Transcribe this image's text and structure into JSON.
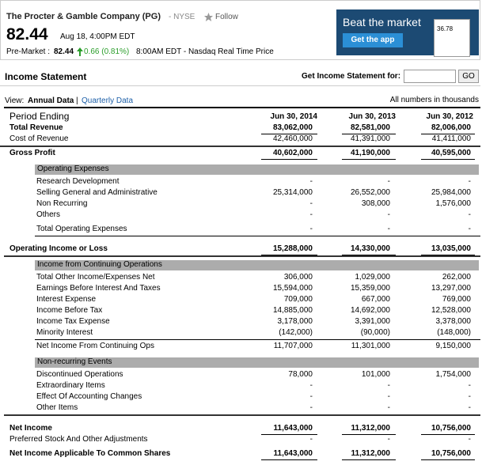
{
  "header": {
    "company": "The Procter & Gamble Company (PG)",
    "exchange": "- NYSE",
    "follow": "Follow",
    "price": "82.44",
    "time": "Aug 18, 4:00PM EDT",
    "premarket_label": "Pre-Market :",
    "premarket_price": "82.44",
    "premarket_change": "0.66 (0.81%)",
    "premarket_time": "8:00AM EDT - Nasdaq Real Time Price"
  },
  "ad": {
    "headline": "Beat the market",
    "button": "Get the app",
    "phone_price": "36.78"
  },
  "section": {
    "title": "Income Statement",
    "lookup_label": "Get Income Statement for:",
    "go": "GO"
  },
  "view": {
    "label": "View:",
    "annual": "Annual Data",
    "separator": "|",
    "quarterly": "Quarterly Data",
    "note": "All numbers in thousands"
  },
  "table": {
    "period_label": "Period Ending",
    "columns": [
      "Jun 30, 2014",
      "Jun 30, 2013",
      "Jun 30, 2012"
    ],
    "rows": [
      {
        "label": "Total Revenue",
        "values": [
          "83,062,000",
          "82,581,000",
          "82,006,000"
        ]
      },
      {
        "label": "Cost of Revenue",
        "values": [
          "42,460,000",
          "41,391,000",
          "41,411,000"
        ]
      },
      {
        "label": "Gross Profit",
        "values": [
          "40,602,000",
          "41,190,000",
          "40,595,000"
        ]
      },
      {
        "label": "Operating Expenses"
      },
      {
        "label": "Research Development",
        "values": [
          "-",
          "-",
          "-"
        ]
      },
      {
        "label": "Selling General and Administrative",
        "values": [
          "25,314,000",
          "26,552,000",
          "25,984,000"
        ]
      },
      {
        "label": "Non Recurring",
        "values": [
          "-",
          "308,000",
          "1,576,000"
        ]
      },
      {
        "label": "Others",
        "values": [
          "-",
          "-",
          "-"
        ]
      },
      {
        "label": "Total Operating Expenses",
        "values": [
          "-",
          "-",
          "-"
        ]
      },
      {
        "label": "Operating Income or Loss",
        "values": [
          "15,288,000",
          "14,330,000",
          "13,035,000"
        ]
      },
      {
        "label": "Income from Continuing Operations"
      },
      {
        "label": "Total Other Income/Expenses Net",
        "values": [
          "306,000",
          "1,029,000",
          "262,000"
        ]
      },
      {
        "label": "Earnings Before Interest And Taxes",
        "values": [
          "15,594,000",
          "15,359,000",
          "13,297,000"
        ]
      },
      {
        "label": "Interest Expense",
        "values": [
          "709,000",
          "667,000",
          "769,000"
        ]
      },
      {
        "label": "Income Before Tax",
        "values": [
          "14,885,000",
          "14,692,000",
          "12,528,000"
        ]
      },
      {
        "label": "Income Tax Expense",
        "values": [
          "3,178,000",
          "3,391,000",
          "3,378,000"
        ]
      },
      {
        "label": "Minority Interest",
        "values": [
          "(142,000)",
          "(90,000)",
          "(148,000)"
        ]
      },
      {
        "label": "Net Income From Continuing Ops",
        "values": [
          "11,707,000",
          "11,301,000",
          "9,150,000"
        ]
      },
      {
        "label": "Non-recurring Events"
      },
      {
        "label": "Discontinued Operations",
        "values": [
          "78,000",
          "101,000",
          "1,754,000"
        ]
      },
      {
        "label": "Extraordinary Items",
        "values": [
          "-",
          "-",
          "-"
        ]
      },
      {
        "label": "Effect Of Accounting Changes",
        "values": [
          "-",
          "-",
          "-"
        ]
      },
      {
        "label": "Other Items",
        "values": [
          "-",
          "-",
          "-"
        ]
      },
      {
        "label": "Net Income",
        "values": [
          "11,643,000",
          "11,312,000",
          "10,756,000"
        ]
      },
      {
        "label": "Preferred Stock And Other Adjustments",
        "values": [
          "-",
          "-",
          "-"
        ]
      },
      {
        "label": "Net Income Applicable To Common Shares",
        "values": [
          "11,643,000",
          "11,312,000",
          "10,756,000"
        ]
      }
    ]
  }
}
